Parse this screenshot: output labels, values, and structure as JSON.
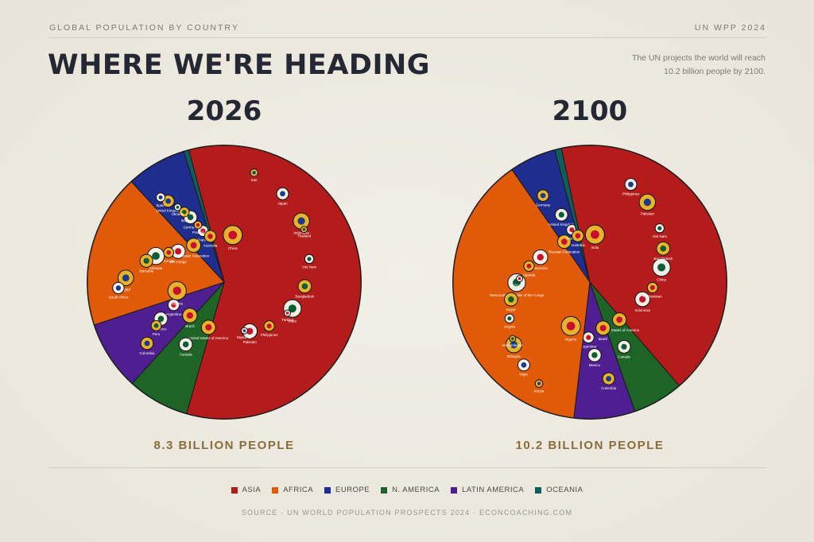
{
  "header": {
    "kicker": "GLOBAL POPULATION BY COUNTRY",
    "source_tag": "UN WPP 2024",
    "headline": "WHERE WE'RE HEADING",
    "subtitle": "The UN projects the world will reach 10.2 billion people by 2100."
  },
  "footer": {
    "source": "SOURCE · UN WORLD POPULATION PROSPECTS 2024 · ECONCOACHING.COM"
  },
  "colors": {
    "Asia": "#b41c1c",
    "Africa": "#e05a08",
    "Europe": "#1f2d8f",
    "N. America": "#1e6427",
    "Latin America": "#4f1f92",
    "Oceania": "#0f5e5e"
  },
  "chart_data": [
    {
      "type": "pie",
      "title": "2026",
      "total_label": "8.3 BILLION PEOPLE",
      "legend": [
        "ASIA",
        "AFRICA",
        "EUROPE",
        "N. AMERICA",
        "LATIN AMERICA",
        "OCEANIA"
      ],
      "slices": [
        {
          "region": "Asia",
          "share": 0.586,
          "countries": [
            "China",
            "India",
            "Indonesia",
            "Pakistan",
            "Bangladesh",
            "Japan",
            "Philippines",
            "Viet Nam",
            "Iran",
            "Türkiye",
            "Thailand",
            "Myanmar"
          ]
        },
        {
          "region": "N. America",
          "share": 0.073,
          "countries": [
            "United States of America",
            "Canada"
          ]
        },
        {
          "region": "Latin America",
          "share": 0.082,
          "countries": [
            "Brazil",
            "Mexico",
            "Colombia",
            "Argentina",
            "Peru"
          ]
        },
        {
          "region": "Africa",
          "share": 0.182,
          "countries": [
            "Nigeria",
            "Ethiopia",
            "Egypt",
            "DR Congo",
            "Tanzania",
            "South Africa",
            "Kenya"
          ]
        },
        {
          "region": "Europe",
          "share": 0.071,
          "countries": [
            "Russian Federation",
            "Germany",
            "United Kingdom",
            "France",
            "Italy",
            "Spain",
            "Poland",
            "Ukraine"
          ]
        },
        {
          "region": "Oceania",
          "share": 0.006,
          "countries": [
            "Australia"
          ]
        }
      ]
    },
    {
      "type": "pie",
      "title": "2100",
      "total_label": "10.2 BILLION PEOPLE",
      "legend": [
        "ASIA",
        "AFRICA",
        "EUROPE",
        "N. AMERICA",
        "LATIN AMERICA",
        "OCEANIA"
      ],
      "slices": [
        {
          "region": "Asia",
          "share": 0.42,
          "countries": [
            "India",
            "China",
            "Pakistan",
            "Indonesia",
            "Bangladesh",
            "Philippines",
            "Afghanistan",
            "Viet Nam"
          ]
        },
        {
          "region": "N. America",
          "share": 0.06,
          "countries": [
            "United States of America",
            "Canada"
          ]
        },
        {
          "region": "Latin America",
          "share": 0.072,
          "countries": [
            "Brazil",
            "Mexico",
            "Colombia",
            "Argentina"
          ]
        },
        {
          "region": "Africa",
          "share": 0.385,
          "countries": [
            "Nigeria",
            "Democratic Republic of the Congo",
            "Ethiopia",
            "Tanzania",
            "Egypt",
            "Niger",
            "Uganda",
            "Angola",
            "Kenya",
            "Sudan",
            "Mozambique"
          ]
        },
        {
          "region": "Europe",
          "share": 0.055,
          "countries": [
            "Russian Federation",
            "United Kingdom",
            "Germany",
            "France"
          ]
        },
        {
          "region": "Oceania",
          "share": 0.008,
          "countries": [
            "Australia"
          ]
        }
      ]
    }
  ]
}
